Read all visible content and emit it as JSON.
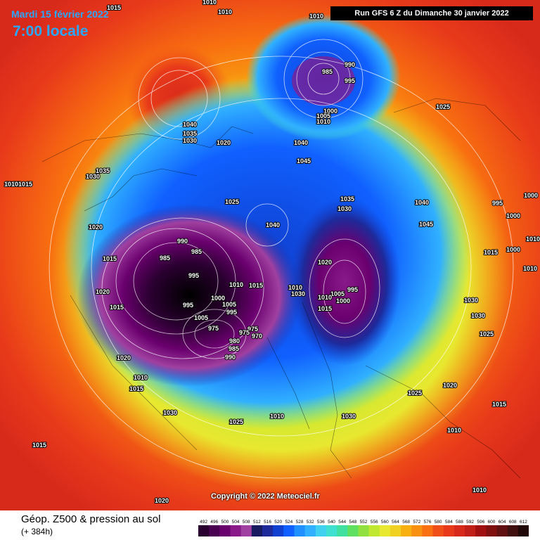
{
  "header": {
    "date": "Mardi 15 février 2022",
    "time": "7:00 locale",
    "run": "Run GFS 6 Z du Dimanche 30 janvier 2022"
  },
  "copyright": "Copyright © 2022 Meteociel.fr",
  "footer": {
    "title": "Géop. Z500 & pression au sol",
    "subtitle": "(+ 384h)"
  },
  "scale": {
    "ticks": [
      "492",
      "496",
      "500",
      "504",
      "508",
      "512",
      "516",
      "520",
      "524",
      "528",
      "532",
      "536",
      "540",
      "544",
      "548",
      "552",
      "556",
      "560",
      "564",
      "568",
      "572",
      "576",
      "580",
      "584",
      "588",
      "592",
      "596",
      "600",
      "604",
      "608",
      "612"
    ],
    "colors": [
      "#2a0030",
      "#4a0050",
      "#6a006e",
      "#8a1a8a",
      "#a040a0",
      "#1a1a60",
      "#1e2a9a",
      "#1040d0",
      "#1060ff",
      "#2090ff",
      "#30b0ff",
      "#40d0f0",
      "#40e0d0",
      "#40e0a0",
      "#60e060",
      "#90e040",
      "#c0e830",
      "#e8e830",
      "#f0d020",
      "#f8b010",
      "#f89010",
      "#f87010",
      "#f05018",
      "#e83a1a",
      "#d82a1a",
      "#c02018",
      "#a01010",
      "#801010",
      "#601010",
      "#401010",
      "#200808"
    ]
  },
  "labels": [
    {
      "text": "1015"
    },
    {
      "text": "1010"
    },
    {
      "text": "1010"
    },
    {
      "text": "1010"
    },
    {
      "text": "1015"
    },
    {
      "text": "1040"
    },
    {
      "text": "1035"
    },
    {
      "text": "1030"
    },
    {
      "text": "1020"
    },
    {
      "text": "1035"
    },
    {
      "text": "1030"
    },
    {
      "text": "1015"
    },
    {
      "text": "1020"
    },
    {
      "text": "1015"
    },
    {
      "text": "1020"
    },
    {
      "text": "1015"
    },
    {
      "text": "1020"
    },
    {
      "text": "1010"
    },
    {
      "text": "1015"
    },
    {
      "text": "1030"
    },
    {
      "text": "1015"
    },
    {
      "text": "1020"
    },
    {
      "text": "990"
    },
    {
      "text": "985"
    },
    {
      "text": "995"
    },
    {
      "text": "1000"
    },
    {
      "text": "1005"
    },
    {
      "text": "1010"
    },
    {
      "text": "990"
    },
    {
      "text": "985"
    },
    {
      "text": "985"
    },
    {
      "text": "995"
    },
    {
      "text": "995"
    },
    {
      "text": "1000"
    },
    {
      "text": "1005"
    },
    {
      "text": "1005"
    },
    {
      "text": "995"
    },
    {
      "text": "975"
    },
    {
      "text": "975"
    },
    {
      "text": "980"
    },
    {
      "text": "985"
    },
    {
      "text": "990"
    },
    {
      "text": "975"
    },
    {
      "text": "970"
    },
    {
      "text": "1010"
    },
    {
      "text": "1015"
    },
    {
      "text": "1025"
    },
    {
      "text": "1040"
    },
    {
      "text": "1045"
    },
    {
      "text": "1035"
    },
    {
      "text": "1030"
    },
    {
      "text": "1010"
    },
    {
      "text": "1030"
    },
    {
      "text": "1020"
    },
    {
      "text": "1005"
    },
    {
      "text": "995"
    },
    {
      "text": "1010"
    },
    {
      "text": "1000"
    },
    {
      "text": "1015"
    },
    {
      "text": "1040"
    },
    {
      "text": "1045"
    },
    {
      "text": "1025"
    },
    {
      "text": "1040"
    },
    {
      "text": "995"
    },
    {
      "text": "1000"
    },
    {
      "text": "1000"
    },
    {
      "text": "1010"
    },
    {
      "text": "1000"
    },
    {
      "text": "1015"
    },
    {
      "text": "1010"
    },
    {
      "text": "1030"
    },
    {
      "text": "1030"
    },
    {
      "text": "1025"
    },
    {
      "text": "1020"
    },
    {
      "text": "1025"
    },
    {
      "text": "1015"
    },
    {
      "text": "1010"
    },
    {
      "text": "1010"
    },
    {
      "text": "1030"
    },
    {
      "text": "1025"
    },
    {
      "text": "1010"
    },
    {
      "text": "1010"
    },
    {
      "text": "1020"
    }
  ]
}
